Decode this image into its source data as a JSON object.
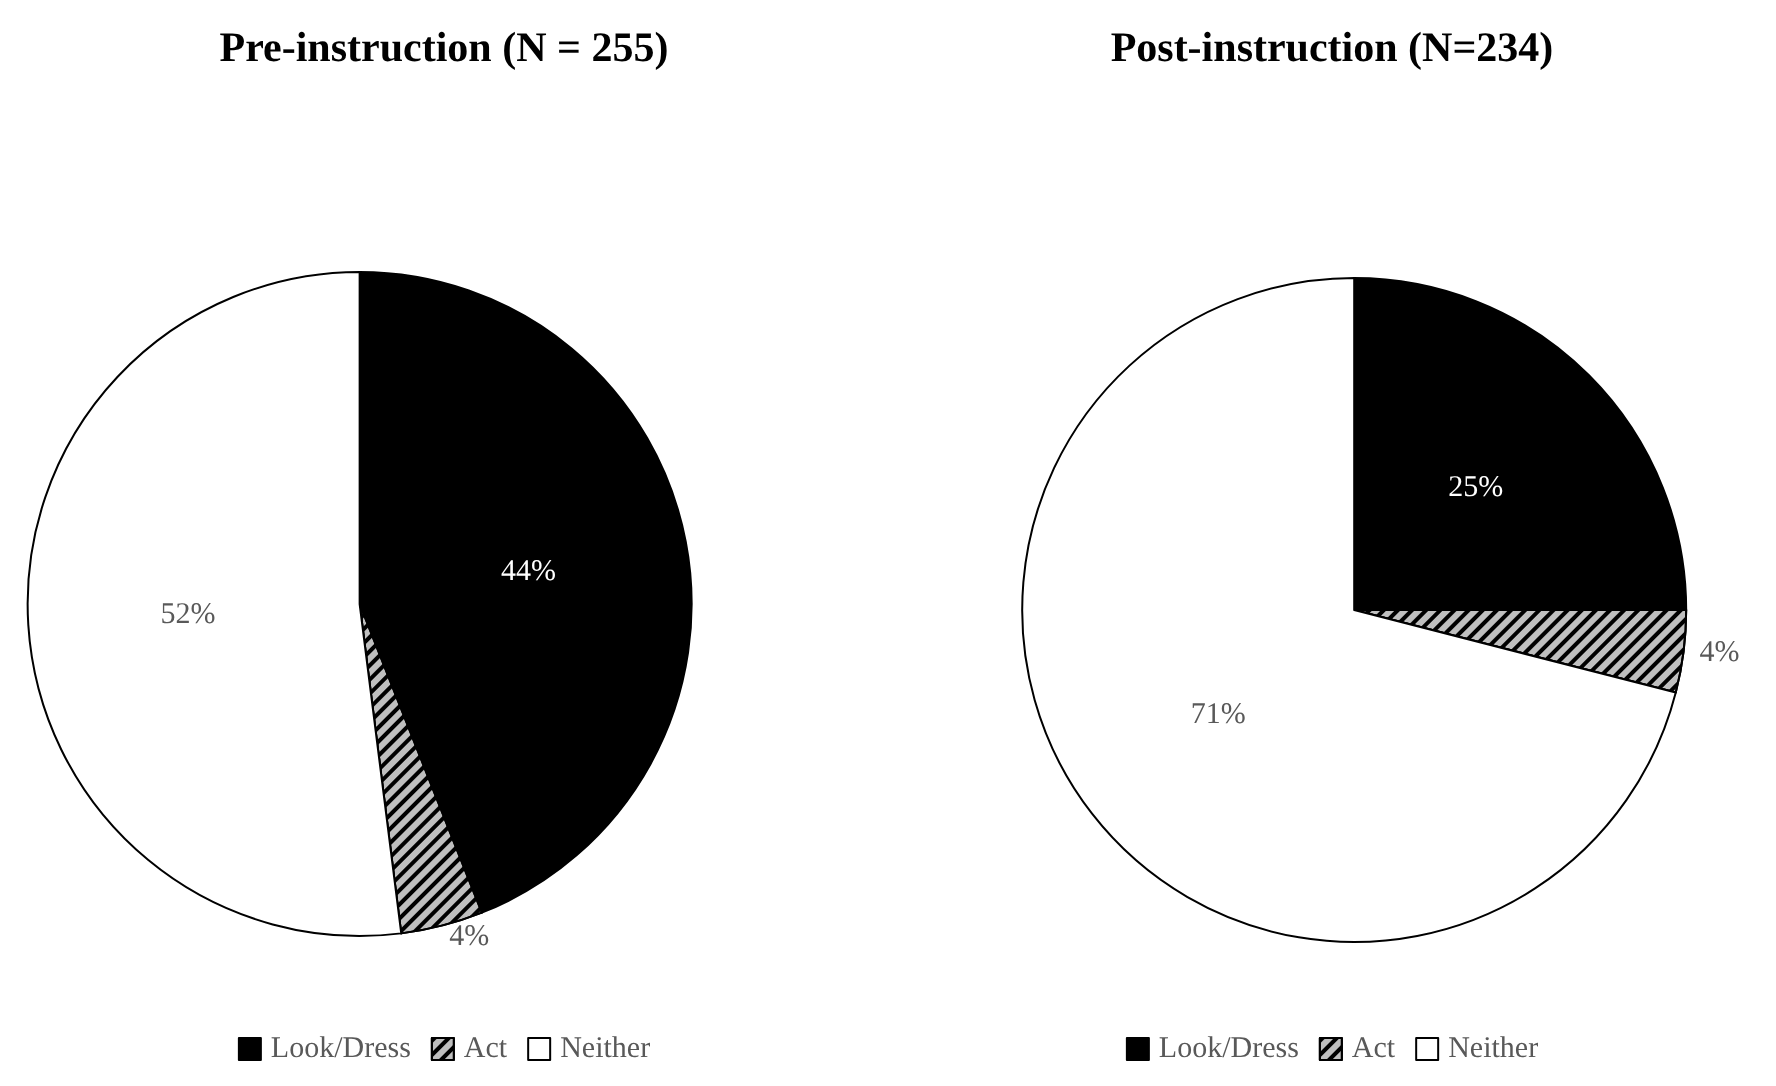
{
  "chart_data": [
    {
      "type": "pie",
      "title": "Pre-instruction (N = 255)",
      "categories": [
        "Look/Dress",
        "Act",
        "Neither"
      ],
      "values": [
        44,
        4,
        52
      ],
      "value_labels": [
        "44%",
        "4%",
        "52%"
      ],
      "colors": [
        "#000000",
        "#bfbfbf",
        "#ffffff"
      ],
      "legend": "bottom"
    },
    {
      "type": "pie",
      "title": "Post-instruction (N=234)",
      "categories": [
        "Look/Dress",
        "Act",
        "Neither"
      ],
      "values": [
        25,
        4,
        71
      ],
      "value_labels": [
        "25%",
        "4%",
        "71%"
      ],
      "colors": [
        "#000000",
        "#bfbfbf",
        "#ffffff"
      ],
      "legend": "bottom"
    }
  ]
}
